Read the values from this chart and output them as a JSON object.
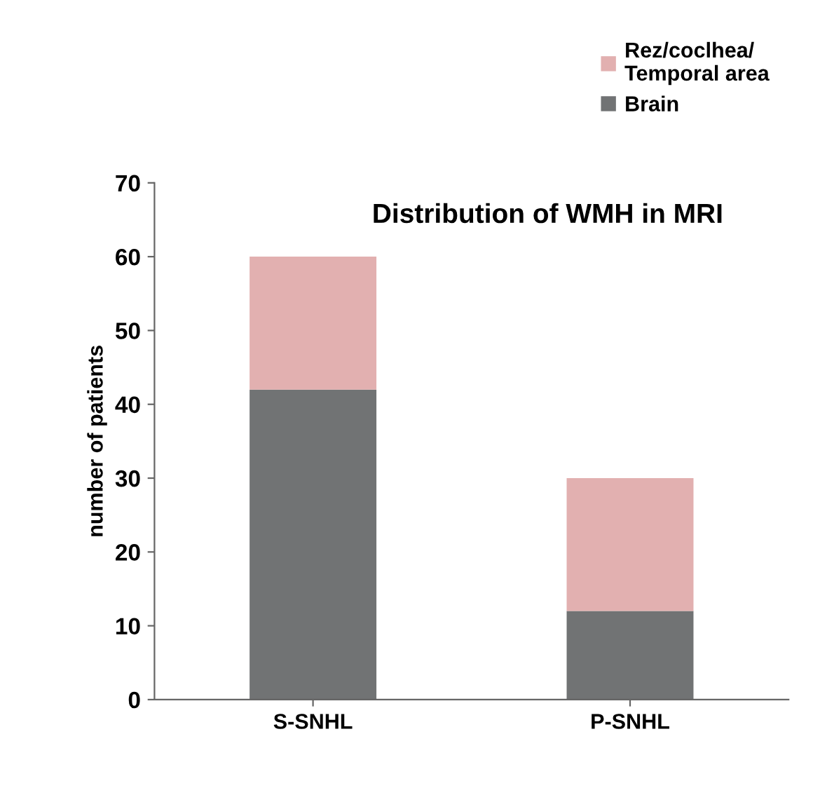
{
  "chart_data": {
    "type": "bar",
    "stacked": true,
    "title": "Distribution of WMH in MRI",
    "ylabel": "number of patients",
    "categories": [
      "S-SNHL",
      "P-SNHL"
    ],
    "series": [
      {
        "name": "Brain",
        "color": "#717374",
        "values": [
          42,
          12
        ]
      },
      {
        "name": "Rez/coclhea/\nTemporal area",
        "color": "#e2b0b0",
        "values": [
          18,
          18
        ]
      }
    ],
    "ylim": [
      0,
      70
    ],
    "yticks": [
      0,
      10,
      20,
      30,
      40,
      50,
      60,
      70
    ],
    "grid": false,
    "legend": "top right"
  }
}
